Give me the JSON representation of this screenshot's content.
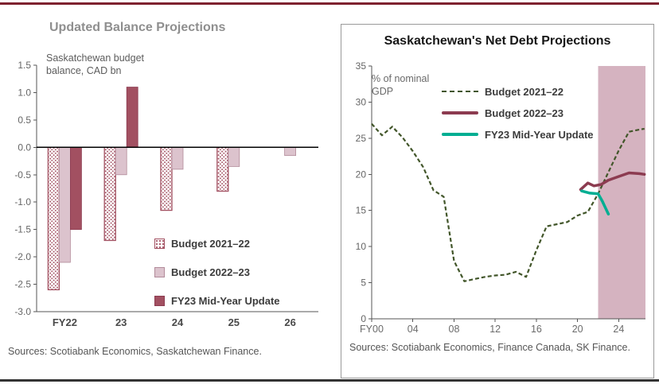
{
  "page": {
    "top_rule_color": "#7e222f",
    "bottom_rule_color": "#333333"
  },
  "chart_data": [
    {
      "type": "bar",
      "title": "Updated Balance Projections",
      "subtitle": "Saskatchewan budget balance, CAD bn",
      "categories": [
        "FY22",
        "23",
        "24",
        "25",
        "26"
      ],
      "ylim": [
        -3.0,
        1.5
      ],
      "ytick_step": 0.5,
      "grid": false,
      "legend_position": "inside-lower-right",
      "series": [
        {
          "name": "Budget 2021–22",
          "style": "dotted",
          "color": "#a25061",
          "values": [
            -2.6,
            -1.7,
            -1.15,
            -0.8,
            null
          ]
        },
        {
          "name": "Budget 2022–23",
          "style": "solid",
          "color": "#dcc3cd",
          "stroke": "#b28b9a",
          "values": [
            -2.1,
            -0.5,
            -0.4,
            -0.35,
            -0.15
          ]
        },
        {
          "name": "FY23 Mid-Year Update",
          "style": "solid",
          "color": "#a25061",
          "stroke": "#8c3b50",
          "values": [
            -1.5,
            1.1,
            null,
            null,
            null
          ]
        }
      ],
      "sources": "Sources: Scotiabank Economics, Saskatchewan Finance."
    },
    {
      "type": "line",
      "title": "Saskatchewan's Net Debt Projections",
      "annotation": "% of nominal GDP",
      "xlim": [
        0,
        26.6
      ],
      "ylim": [
        0,
        35
      ],
      "ytick_step": 5,
      "grid": false,
      "legend_position": "inside-top",
      "x_ticks": [
        {
          "pos": 0,
          "label": "FY00"
        },
        {
          "pos": 4,
          "label": "04"
        },
        {
          "pos": 8,
          "label": "08"
        },
        {
          "pos": 12,
          "label": "12"
        },
        {
          "pos": 16,
          "label": "16"
        },
        {
          "pos": 20,
          "label": "20"
        },
        {
          "pos": 24,
          "label": "24"
        }
      ],
      "forecast_band": {
        "x0": 22,
        "x1": 26.6,
        "color": "#d5b3c0"
      },
      "series": [
        {
          "name": "Budget 2021–22",
          "style": "dashed",
          "color": "#42562a",
          "width": 2.2,
          "x": [
            0,
            1,
            2,
            3,
            4,
            5,
            6,
            7,
            8,
            9,
            10,
            11,
            12,
            13,
            14,
            15,
            16,
            17,
            18,
            19,
            20,
            21,
            22,
            23,
            24,
            25,
            26,
            26.5
          ],
          "y": [
            27.0,
            25.4,
            26.6,
            25.1,
            23.2,
            21.0,
            17.8,
            16.9,
            8.0,
            5.2,
            5.5,
            5.8,
            6.0,
            6.1,
            6.5,
            5.8,
            9.5,
            12.8,
            13.1,
            13.4,
            14.3,
            14.8,
            17.3,
            20.3,
            23.3,
            25.9,
            26.2,
            26.3
          ]
        },
        {
          "name": "Budget 2022–23",
          "style": "solid",
          "color": "#8c3b50",
          "width": 3.5,
          "x": [
            20.3,
            21.0,
            21.6,
            22.3,
            23.0,
            24.0,
            25.0,
            26.0,
            26.5
          ],
          "y": [
            17.9,
            18.8,
            18.4,
            18.6,
            19.2,
            19.7,
            20.2,
            20.1,
            20.0
          ]
        },
        {
          "name": "FY23 Mid-Year Update",
          "style": "solid",
          "color": "#00ae92",
          "width": 3.5,
          "x": [
            20.4,
            21.2,
            22.0,
            22.4,
            23.0
          ],
          "y": [
            17.7,
            17.4,
            17.3,
            16.3,
            14.5
          ]
        }
      ],
      "sources": "Sources: Scotiabank Economics, Finance Canada, SK Finance."
    }
  ]
}
